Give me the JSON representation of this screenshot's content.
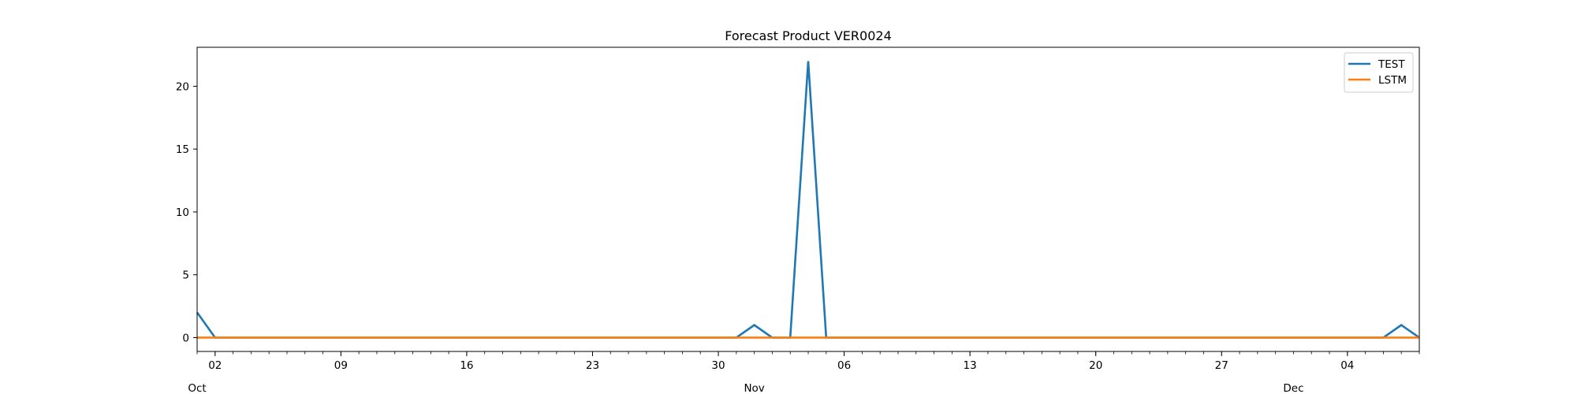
{
  "chart_data": {
    "type": "line",
    "title": "Forecast Product VER0024",
    "xlabel": "",
    "ylabel": "",
    "x_range": [
      "2023-10-01",
      "2023-12-08"
    ],
    "ylim": [
      -1.1,
      23.1
    ],
    "yticks": [
      0,
      5,
      10,
      15,
      20
    ],
    "grid": false,
    "legend_position": "top-right",
    "x_major_ticks": [
      {
        "date": "2023-10-02",
        "label": "02"
      },
      {
        "date": "2023-10-09",
        "label": "09"
      },
      {
        "date": "2023-10-16",
        "label": "16"
      },
      {
        "date": "2023-10-23",
        "label": "23"
      },
      {
        "date": "2023-10-30",
        "label": "30"
      },
      {
        "date": "2023-11-06",
        "label": "06"
      },
      {
        "date": "2023-11-13",
        "label": "13"
      },
      {
        "date": "2023-11-20",
        "label": "20"
      },
      {
        "date": "2023-11-27",
        "label": "27"
      },
      {
        "date": "2023-12-04",
        "label": "04"
      }
    ],
    "x_month_labels": [
      {
        "date": "2023-10-01",
        "label": "Oct"
      },
      {
        "date": "2023-11-01",
        "label": "Nov"
      },
      {
        "date": "2023-12-01",
        "label": "Dec"
      }
    ],
    "series": [
      {
        "name": "TEST",
        "color": "#1f77b4",
        "points": [
          {
            "x": "2023-10-01",
            "y": 2
          },
          {
            "x": "2023-10-02",
            "y": 0
          },
          {
            "x": "2023-10-31",
            "y": 0
          },
          {
            "x": "2023-11-01",
            "y": 1
          },
          {
            "x": "2023-11-02",
            "y": 0
          },
          {
            "x": "2023-11-03",
            "y": 0
          },
          {
            "x": "2023-11-04",
            "y": 22
          },
          {
            "x": "2023-11-05",
            "y": 0
          },
          {
            "x": "2023-12-06",
            "y": 0
          },
          {
            "x": "2023-12-07",
            "y": 1
          },
          {
            "x": "2023-12-08",
            "y": 0
          }
        ]
      },
      {
        "name": "LSTM",
        "color": "#ff7f0e",
        "points": [
          {
            "x": "2023-10-01",
            "y": 0
          },
          {
            "x": "2023-12-08",
            "y": 0
          }
        ]
      }
    ]
  }
}
